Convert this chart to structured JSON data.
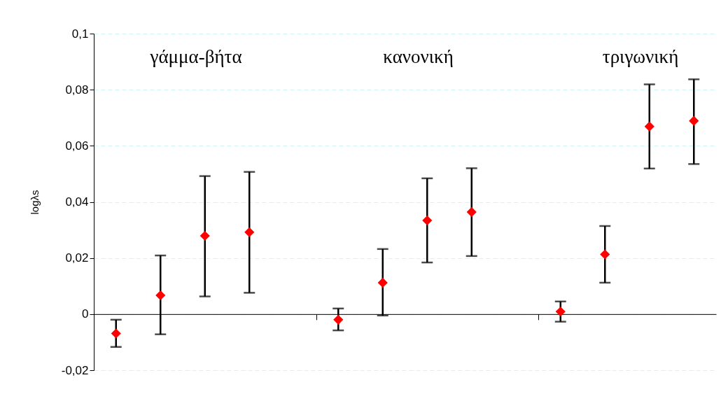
{
  "chart_data": {
    "type": "scatter",
    "ylabel": "logλs",
    "annotations": [
      "γάμμα-βήτα",
      "κανονική",
      "τριγωνική"
    ],
    "categories": [
      null,
      null,
      null,
      null,
      null,
      null,
      null,
      null,
      null,
      null,
      null,
      null,
      null,
      null
    ],
    "series": [
      {
        "color": "#ff0000",
        "marker": "diamond",
        "values": [
          -0.0069,
          0.0067,
          0.0279,
          0.0292,
          null,
          -0.002,
          0.0112,
          0.0334,
          0.0364,
          null,
          0.0009,
          0.0213,
          0.0669,
          0.0689
        ],
        "errors": [
          [
            -0.0117,
            -0.002
          ],
          [
            -0.0072,
            0.0209
          ],
          [
            0.0063,
            0.0492
          ],
          [
            0.0076,
            0.0507
          ],
          null,
          [
            -0.0058,
            0.002
          ],
          [
            -0.0005,
            0.0232
          ],
          [
            0.0184,
            0.0484
          ],
          [
            0.0207,
            0.052
          ],
          null,
          [
            -0.0027,
            0.0045
          ],
          [
            0.0112,
            0.0314
          ],
          [
            0.0519,
            0.0819
          ],
          [
            0.0535,
            0.0837
          ]
        ]
      }
    ],
    "ylim": [
      -0.02,
      0.1
    ],
    "yticks": [
      {
        "value": -0.02,
        "label": "-0,02"
      },
      0,
      {
        "value": 0.02,
        "label": "0,02"
      },
      {
        "value": 0.04,
        "label": "0,04"
      },
      {
        "value": 0.06,
        "label": "0,06"
      },
      {
        "value": 0.08,
        "label": "0,08"
      },
      {
        "value": 0.1,
        "label": "0,1"
      }
    ],
    "grid": "y",
    "tick_labels": "y"
  }
}
